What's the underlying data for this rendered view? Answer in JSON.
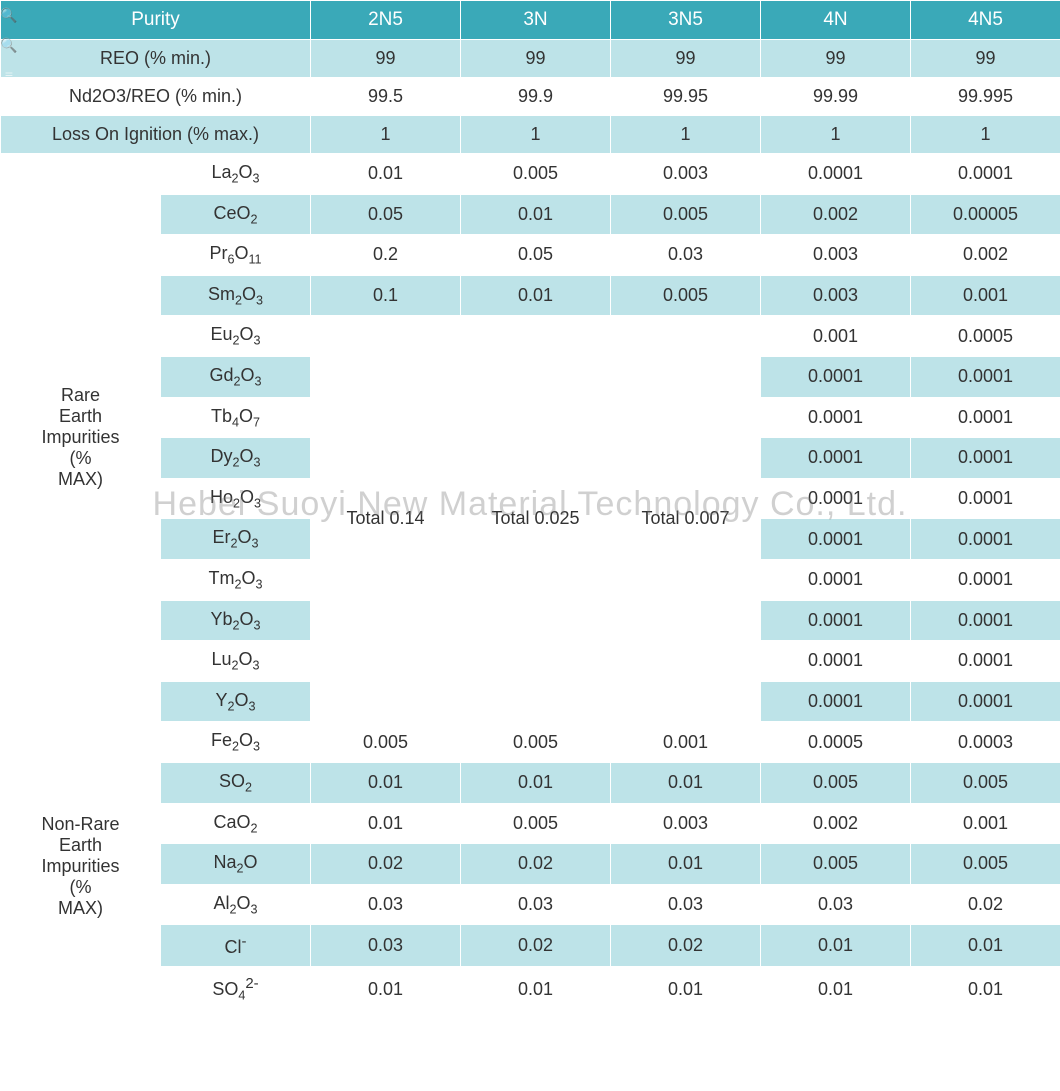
{
  "watermark": "Hebei Suoyi New Material Technology Co., Ltd.",
  "colors": {
    "header_bg": "#3aa9b8",
    "header_text": "#ffffff",
    "light_bg": "#bde3e8",
    "white_bg": "#ffffff",
    "border": "#ffffff",
    "text": "#333333"
  },
  "header": {
    "purity": "Purity",
    "cols": [
      "2N5",
      "3N",
      "3N5",
      "4N",
      "4N5"
    ]
  },
  "top_rows": [
    {
      "label": "REO (% min.)",
      "bg": "light",
      "cells": [
        "99",
        "99",
        "99",
        "99",
        "99"
      ]
    },
    {
      "label": "Nd2O3/REO (% min.)",
      "bg": "white",
      "cells": [
        "99.5",
        "99.9",
        "99.95",
        "99.99",
        "99.995"
      ]
    },
    {
      "label": "Loss On Ignition (% max.)",
      "bg": "light",
      "cells": [
        "1",
        "1",
        "1",
        "1",
        "1"
      ]
    }
  ],
  "rare_earth": {
    "group_label": "Rare Earth Impurities (% MAX)",
    "totals": [
      "Total 0.14",
      "Total 0.025",
      "Total 0.007"
    ],
    "rows": [
      {
        "name": "La2O3",
        "bg": "white",
        "c": [
          "0.01",
          "0.005",
          "0.003",
          "0.0001",
          "0.0001"
        ],
        "merged": false
      },
      {
        "name": "CeO2",
        "bg": "light",
        "c": [
          "0.05",
          "0.01",
          "0.005",
          "0.002",
          "0.00005"
        ],
        "merged": false
      },
      {
        "name": "Pr6O11",
        "bg": "white",
        "c": [
          "0.2",
          "0.05",
          "0.03",
          "0.003",
          "0.002"
        ],
        "merged": false
      },
      {
        "name": "Sm2O3",
        "bg": "light",
        "c": [
          "0.1",
          "0.01",
          "0.005",
          "0.003",
          "0.001"
        ],
        "merged": false
      },
      {
        "name": "Eu2O3",
        "bg": "white",
        "c": [
          null,
          null,
          null,
          "0.001",
          "0.0005"
        ],
        "merged": true
      },
      {
        "name": "Gd2O3",
        "bg": "light",
        "c": [
          null,
          null,
          null,
          "0.0001",
          "0.0001"
        ],
        "merged": true
      },
      {
        "name": "Tb4O7",
        "bg": "white",
        "c": [
          null,
          null,
          null,
          "0.0001",
          "0.0001"
        ],
        "merged": true
      },
      {
        "name": "Dy2O3",
        "bg": "light",
        "c": [
          null,
          null,
          null,
          "0.0001",
          "0.0001"
        ],
        "merged": true
      },
      {
        "name": "Ho2O3",
        "bg": "white",
        "c": [
          null,
          null,
          null,
          "0.0001",
          "0.0001"
        ],
        "merged": true
      },
      {
        "name": "Er2O3",
        "bg": "light",
        "c": [
          null,
          null,
          null,
          "0.0001",
          "0.0001"
        ],
        "merged": true
      },
      {
        "name": "Tm2O3",
        "bg": "white",
        "c": [
          null,
          null,
          null,
          "0.0001",
          "0.0001"
        ],
        "merged": true
      },
      {
        "name": "Yb2O3",
        "bg": "light",
        "c": [
          null,
          null,
          null,
          "0.0001",
          "0.0001"
        ],
        "merged": true
      },
      {
        "name": "Lu2O3",
        "bg": "white",
        "c": [
          null,
          null,
          null,
          "0.0001",
          "0.0001"
        ],
        "merged": true
      },
      {
        "name": "Y2O3",
        "bg": "light",
        "c": [
          null,
          null,
          null,
          "0.0001",
          "0.0001"
        ],
        "merged": true
      }
    ]
  },
  "non_rare_earth": {
    "group_label": "Non-Rare Earth Impurities (% MAX)",
    "rows": [
      {
        "name": "Fe2O3",
        "bg": "white",
        "c": [
          "0.005",
          "0.005",
          "0.001",
          "0.0005",
          "0.0003"
        ]
      },
      {
        "name": "SO2",
        "bg": "light",
        "c": [
          "0.01",
          "0.01",
          "0.01",
          "0.005",
          "0.005"
        ]
      },
      {
        "name": "CaO2",
        "bg": "white",
        "c": [
          "0.01",
          "0.005",
          "0.003",
          "0.002",
          "0.001"
        ]
      },
      {
        "name": "Na2O",
        "bg": "light",
        "c": [
          "0.02",
          "0.02",
          "0.01",
          "0.005",
          "0.005"
        ]
      },
      {
        "name": "Al2O3",
        "bg": "white",
        "c": [
          "0.03",
          "0.03",
          "0.03",
          "0.03",
          "0.02"
        ]
      },
      {
        "name": "Cl-",
        "bg": "light",
        "c": [
          "0.03",
          "0.02",
          "0.02",
          "0.01",
          "0.01"
        ]
      },
      {
        "name": "SO4 2-",
        "bg": "white",
        "c": [
          "0.01",
          "0.01",
          "0.01",
          "0.01",
          "0.01"
        ]
      }
    ]
  }
}
